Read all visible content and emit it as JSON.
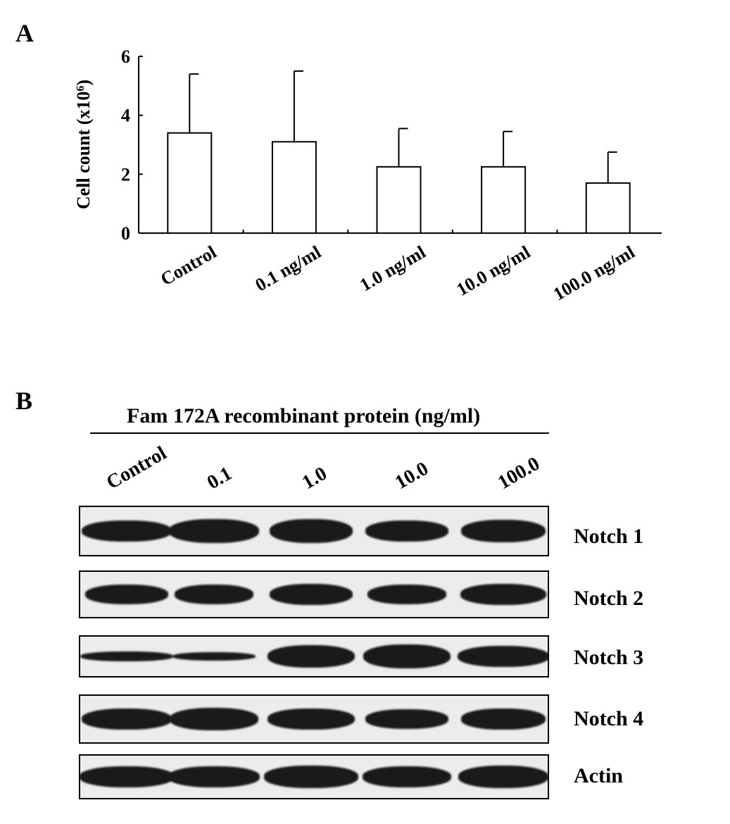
{
  "panel_a_label": "A",
  "panel_b_label": "B",
  "chart_data": {
    "type": "bar",
    "categories": [
      "Control",
      "0.1 ng/ml",
      "1.0 ng/ml",
      "10.0 ng/ml",
      "100.0 ng/ml"
    ],
    "values": [
      3.4,
      3.1,
      2.25,
      2.25,
      1.7
    ],
    "error_upper": [
      2.0,
      2.4,
      1.3,
      1.2,
      1.05
    ],
    "ylim": [
      0,
      6
    ],
    "yticks": [
      "0",
      "2",
      "4",
      "6"
    ],
    "ylabel": "Cell count (x10",
    "ylabel_sup": "6",
    "ylabel_close": ")",
    "grid": false
  },
  "blot": {
    "header": "Fam 172A recombinant protein (ng/ml)",
    "lanes": [
      "Control",
      "0.1",
      "1.0",
      "10.0",
      "100.0"
    ],
    "proteins": [
      "Notch 1",
      "Notch 2",
      "Notch 3",
      "Notch 4",
      "Actin"
    ]
  }
}
